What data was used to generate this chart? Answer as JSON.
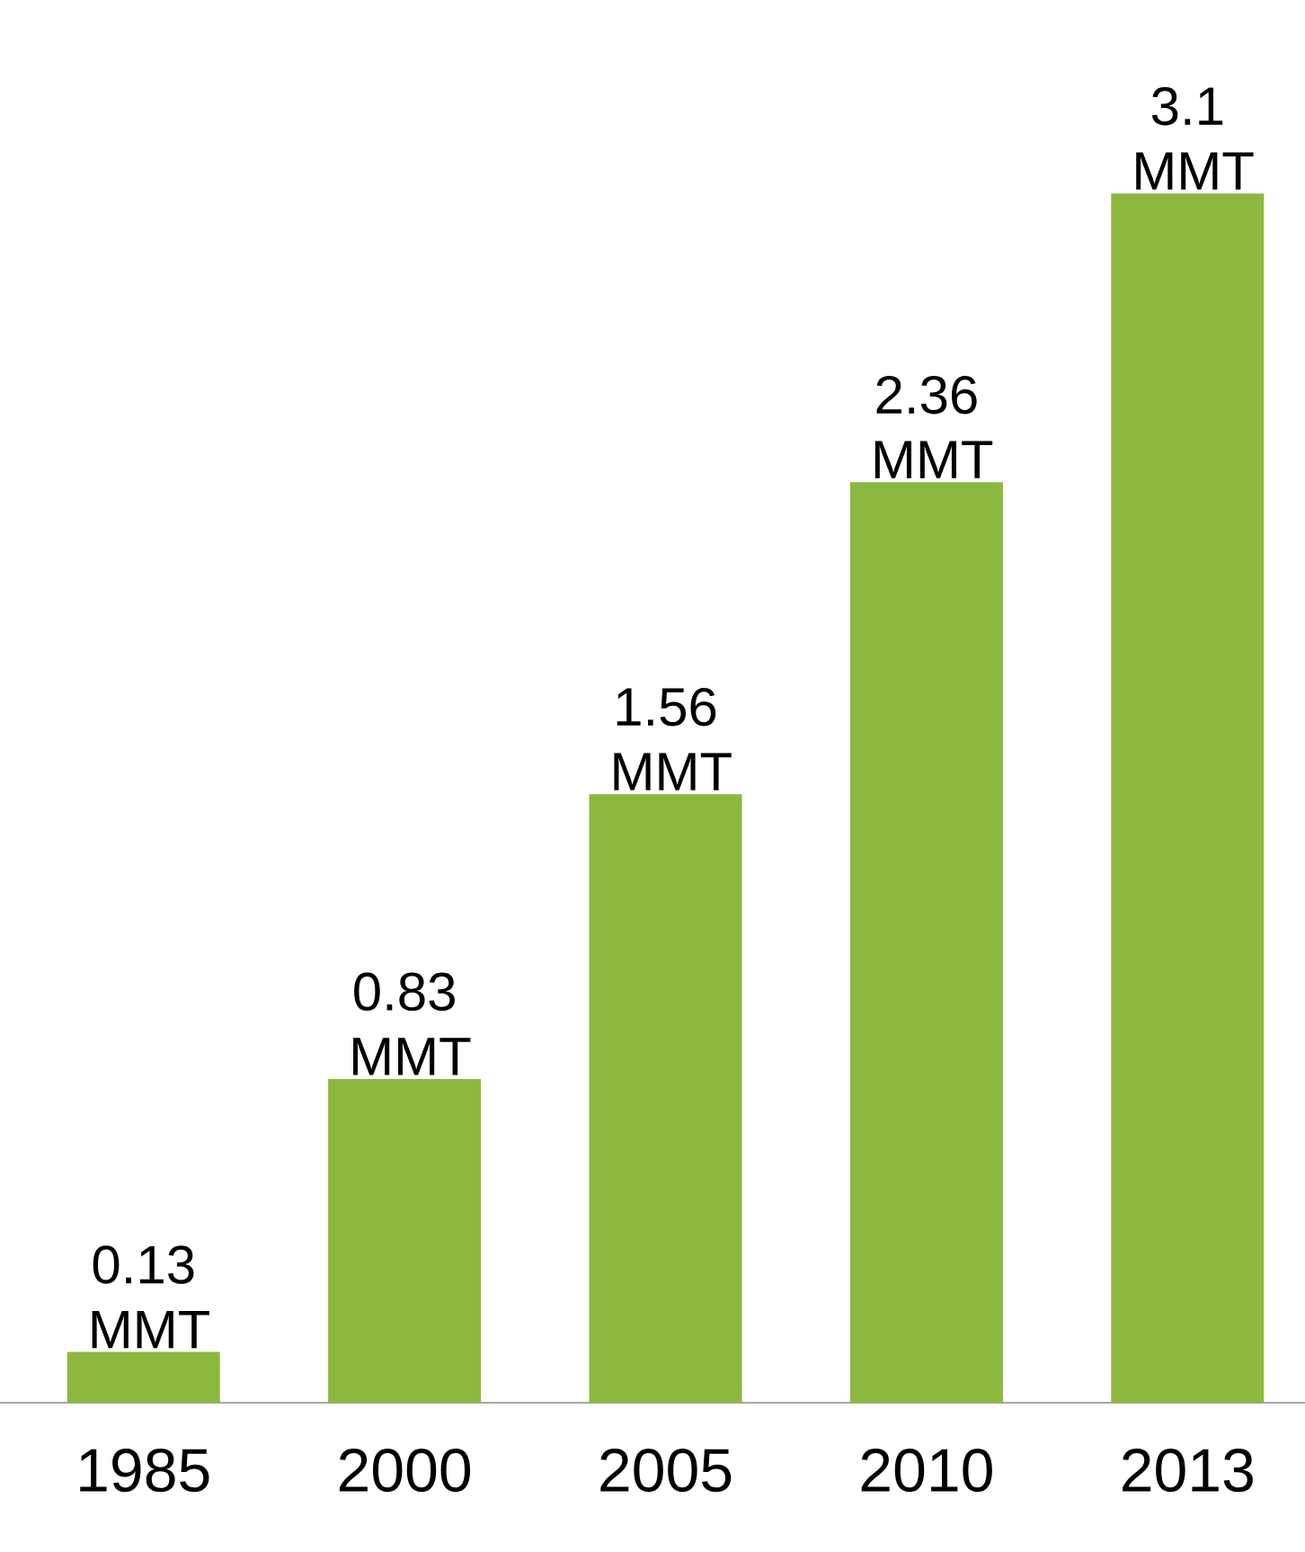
{
  "chart_data": {
    "type": "bar",
    "categories": [
      "1985",
      "2000",
      "2005",
      "2010",
      "2013"
    ],
    "values": [
      0.13,
      0.83,
      1.56,
      2.36,
      3.1
    ],
    "value_labels": [
      "0.13 MMT",
      "0.83 MMT",
      "1.56 MMT",
      "2.36 MMT",
      "3.1 MMT"
    ],
    "color": "#8cb83f"
  }
}
